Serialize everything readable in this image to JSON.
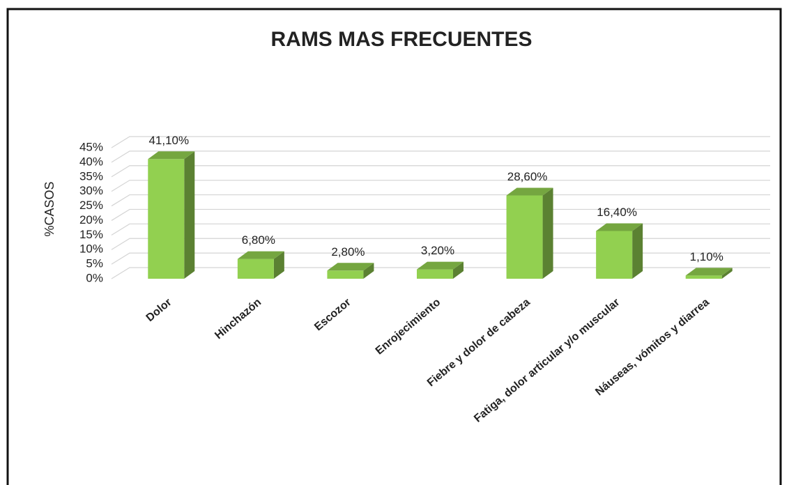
{
  "chart_data": {
    "type": "bar3d",
    "title": "RAMS MAS FRECUENTES",
    "ylabel": "%CASOS",
    "categories": [
      "Dolor",
      "Hinchazón",
      "Escozor",
      "Enrojecimiento",
      "Fiebre y dolor de cabeza",
      "Fatiga, dolor articular y/o muscular",
      "Náuseas, vómitos y diarrea"
    ],
    "values": [
      41.1,
      6.8,
      2.8,
      3.2,
      28.6,
      16.4,
      1.1
    ],
    "value_labels": [
      "41,10%",
      "6,80%",
      "2,80%",
      "3,20%",
      "28,60%",
      "16,40%",
      "1,10%"
    ],
    "color": "#92d050",
    "ylim": [
      0,
      45
    ],
    "yticks": [
      {
        "value": 0,
        "label": "0%"
      },
      {
        "value": 5,
        "label": "5%"
      },
      {
        "value": 10,
        "label": "10%"
      },
      {
        "value": 15,
        "label": "15%"
      },
      {
        "value": 20,
        "label": "20%"
      },
      {
        "value": 25,
        "label": "25%"
      },
      {
        "value": 30,
        "label": "30%"
      },
      {
        "value": 35,
        "label": "35%"
      },
      {
        "value": 40,
        "label": "40%"
      },
      {
        "value": 45,
        "label": "45%"
      }
    ],
    "grid": true
  }
}
